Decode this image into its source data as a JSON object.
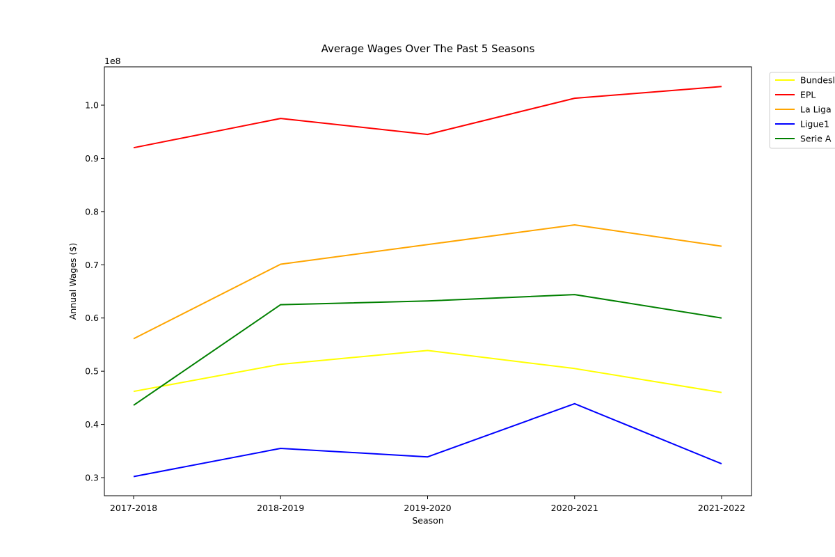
{
  "chart_data": {
    "type": "line",
    "title": "Average Wages Over The Past 5 Seasons",
    "xlabel": "Season",
    "ylabel": "Annual Wages ($)",
    "y_offset_label": "1e8",
    "categories": [
      "2017-2018",
      "2018-2019",
      "2019-2020",
      "2020-2021",
      "2021-2022"
    ],
    "y_ticks": [
      {
        "value": 30000000,
        "label": "0.3"
      },
      {
        "value": 40000000,
        "label": "0.4"
      },
      {
        "value": 50000000,
        "label": "0.5"
      },
      {
        "value": 60000000,
        "label": "0.6"
      },
      {
        "value": 70000000,
        "label": "0.7"
      },
      {
        "value": 80000000,
        "label": "0.8"
      },
      {
        "value": 90000000,
        "label": "0.9"
      },
      {
        "value": 100000000,
        "label": "1.0"
      }
    ],
    "ylim": [
      26600000,
      107200000
    ],
    "grid": false,
    "legend_position": "outside top-right",
    "series": [
      {
        "name": "Bundesliga",
        "color": "#ffff00",
        "values": [
          46200000,
          51300000,
          53900000,
          50500000,
          46000000
        ]
      },
      {
        "name": "EPL",
        "color": "#ff0000",
        "values": [
          92000000,
          97500000,
          94500000,
          101300000,
          103500000
        ]
      },
      {
        "name": "La Liga",
        "color": "#ffa500",
        "values": [
          56100000,
          70100000,
          73800000,
          77500000,
          73500000
        ]
      },
      {
        "name": "Ligue1",
        "color": "#0000ff",
        "values": [
          30200000,
          35500000,
          33900000,
          43900000,
          32600000
        ]
      },
      {
        "name": "Serie A",
        "color": "#008000",
        "values": [
          43600000,
          62500000,
          63200000,
          64400000,
          60000000
        ]
      }
    ]
  }
}
